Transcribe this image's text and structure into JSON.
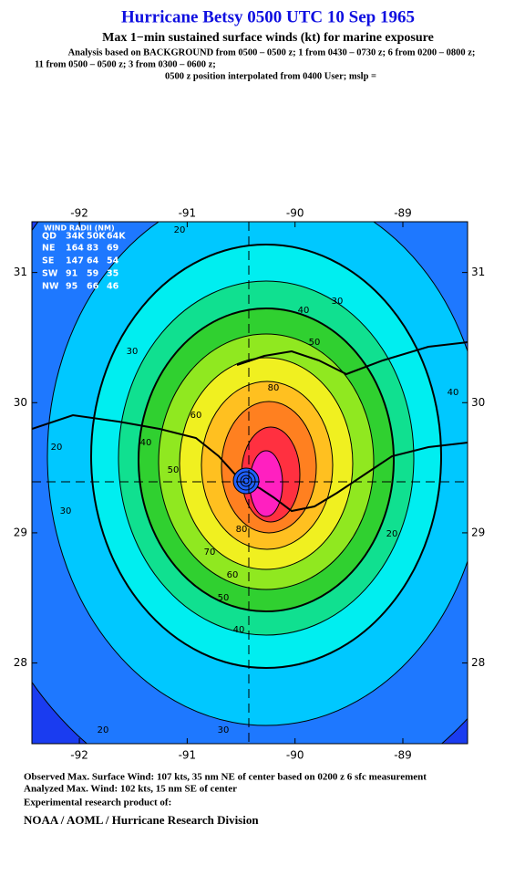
{
  "header": {
    "title": "Hurricane Betsy 0500 UTC 10 Sep 1965",
    "subtitle": "Max 1−min sustained surface winds (kt) for marine exposure",
    "analysis": [
      "Analysis based on  BACKGROUND from 0500 – 0500 z;  1 from 0430 – 0730 z;  6 from 0200 – 0800 z;",
      "11 from 0500 – 0500 z;  3 from 0300 – 0600 z;",
      "0500 z position interpolated from 0400 User; mslp ="
    ]
  },
  "map": {
    "xlim": [
      -92.44,
      -88.4
    ],
    "ylim": [
      27.38,
      31.39
    ],
    "xticks": [
      -92,
      -91,
      -90,
      -89
    ],
    "yticks": [
      28,
      29,
      30,
      31
    ],
    "contour_labels": [
      20,
      30,
      40,
      50,
      80,
      30,
      60,
      40,
      50,
      30,
      20,
      80,
      70,
      60,
      50,
      40,
      30,
      20,
      40,
      20
    ]
  },
  "wind_radii": {
    "title": "WIND RADII (NM)",
    "header": [
      "QD",
      "34K",
      "50K",
      "64K"
    ],
    "rows": [
      [
        "NE",
        164,
        83,
        69
      ],
      [
        "SE",
        147,
        64,
        54
      ],
      [
        "SW",
        91,
        59,
        35
      ],
      [
        "NW",
        95,
        66,
        46
      ]
    ]
  },
  "footer": {
    "lines": [
      "Observed Max. Surface Wind: 107 kts, 35 nm NE of center based on 0200 z 6 sfc measurement",
      "Analyzed Max. Wind: 102 kts, 15 nm SE of center",
      "Experimental research product of:"
    ],
    "credit": "NOAA / AOML / Hurricane Research Division"
  }
}
